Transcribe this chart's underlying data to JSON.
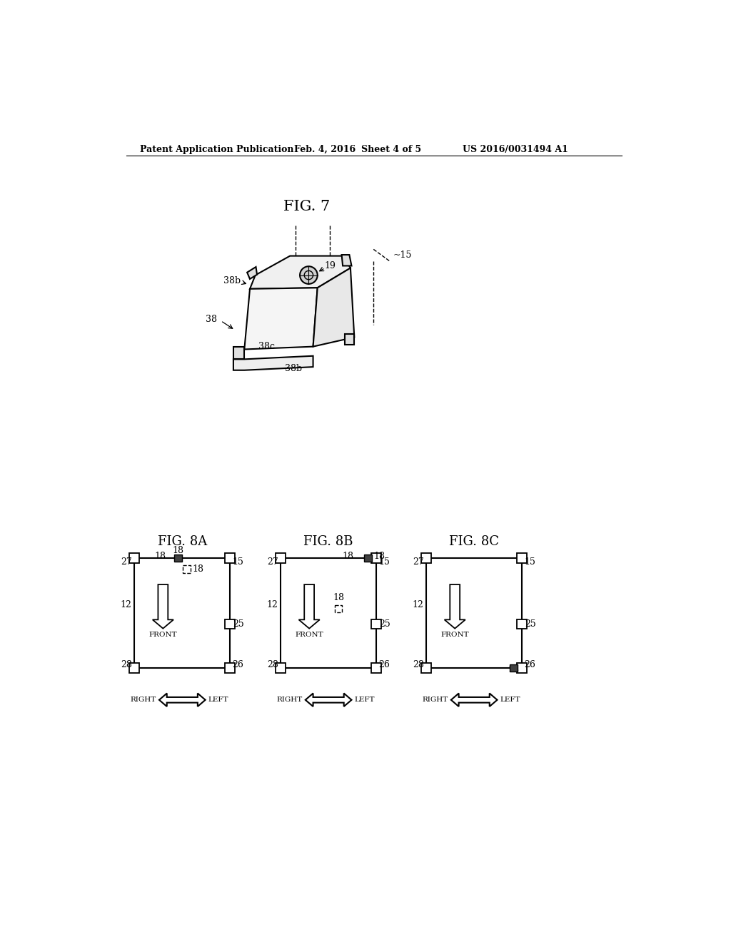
{
  "bg_color": "#ffffff",
  "header_text": "Patent Application Publication",
  "header_date": "Feb. 4, 2016",
  "header_sheet": "Sheet 4 of 5",
  "header_patent": "US 2016/0031494 A1",
  "fig7_title": "FIG. 7",
  "fig8a_title": "FIG. 8A",
  "fig8b_title": "FIG. 8B",
  "fig8c_title": "FIG. 8C"
}
